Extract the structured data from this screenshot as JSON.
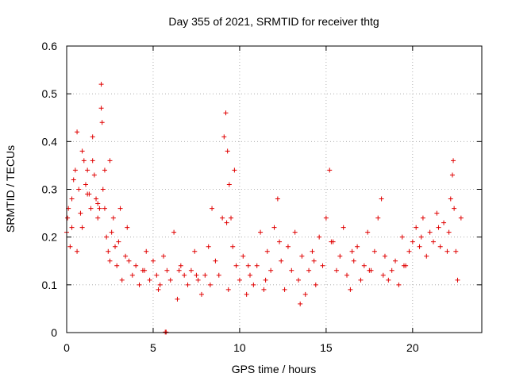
{
  "chart_data": {
    "type": "scatter",
    "title": "Day 355 of 2021, SRMTID for receiver thtg",
    "xlabel": "GPS time / hours",
    "ylabel": "SRMTID / TECUs",
    "xlim": [
      0,
      24
    ],
    "ylim": [
      0,
      0.6
    ],
    "xticks": [
      0,
      5,
      10,
      15,
      20
    ],
    "xtick_labels": [
      "0",
      "5",
      "10",
      "15",
      "20"
    ],
    "yticks": [
      0,
      0.1,
      0.2,
      0.3,
      0.4,
      0.5,
      0.6
    ],
    "ytick_labels": [
      "0",
      "0.1",
      "0.2",
      "0.3",
      "0.4",
      "0.5",
      "0.6"
    ],
    "grid": true,
    "marker": "plus",
    "color": "#e00000",
    "series": [
      {
        "name": "SRMTID",
        "x": [
          0.0,
          0.1,
          0.2,
          0.3,
          0.4,
          0.5,
          0.6,
          0.7,
          0.8,
          0.9,
          1.0,
          1.1,
          1.2,
          1.3,
          1.4,
          1.5,
          1.6,
          1.7,
          1.8,
          1.9,
          2.0,
          2.0,
          2.05,
          2.1,
          2.2,
          2.3,
          2.4,
          2.5,
          2.6,
          2.7,
          2.8,
          2.9,
          3.0,
          3.2,
          3.4,
          3.6,
          3.8,
          4.0,
          4.2,
          4.4,
          4.6,
          4.8,
          5.0,
          5.2,
          5.4,
          5.6,
          5.8,
          6.0,
          6.2,
          6.4,
          6.6,
          6.8,
          7.0,
          7.2,
          7.4,
          7.6,
          7.8,
          8.0,
          8.2,
          8.4,
          8.6,
          8.8,
          9.0,
          9.1,
          9.2,
          9.3,
          9.4,
          9.5,
          9.6,
          9.8,
          10.0,
          10.2,
          10.4,
          10.6,
          10.8,
          11.0,
          11.2,
          11.4,
          11.6,
          11.8,
          12.0,
          12.2,
          12.4,
          12.6,
          12.8,
          13.0,
          13.2,
          13.4,
          13.6,
          13.8,
          14.0,
          14.2,
          14.4,
          14.6,
          14.8,
          15.0,
          15.2,
          15.4,
          15.6,
          15.8,
          16.0,
          16.2,
          16.4,
          16.6,
          16.8,
          17.0,
          17.2,
          17.4,
          17.6,
          17.8,
          18.0,
          18.2,
          18.4,
          18.6,
          18.8,
          19.0,
          19.2,
          19.4,
          19.6,
          19.8,
          20.0,
          20.2,
          20.4,
          20.6,
          20.8,
          21.0,
          21.2,
          21.4,
          21.6,
          21.8,
          22.0,
          22.1,
          22.2,
          22.3,
          22.4,
          22.6,
          22.8,
          0.05,
          0.3,
          0.6,
          0.9,
          1.2,
          1.5,
          1.8,
          2.2,
          2.5,
          3.1,
          3.5,
          4.5,
          5.3,
          6.5,
          7.5,
          8.3,
          9.25,
          9.35,
          9.7,
          10.5,
          11.5,
          12.3,
          13.5,
          14.3,
          15.3,
          16.5,
          17.5,
          18.3,
          19.5,
          20.5,
          21.5,
          22.35,
          22.5,
          5.7,
          5.75
        ],
        "y": [
          0.21,
          0.26,
          0.18,
          0.28,
          0.32,
          0.34,
          0.42,
          0.3,
          0.25,
          0.38,
          0.36,
          0.31,
          0.34,
          0.29,
          0.26,
          0.36,
          0.33,
          0.28,
          0.24,
          0.26,
          0.47,
          0.52,
          0.44,
          0.3,
          0.34,
          0.2,
          0.17,
          0.15,
          0.21,
          0.24,
          0.18,
          0.14,
          0.19,
          0.11,
          0.16,
          0.15,
          0.12,
          0.14,
          0.1,
          0.13,
          0.17,
          0.11,
          0.15,
          0.12,
          0.1,
          0.16,
          0.13,
          0.11,
          0.21,
          0.07,
          0.14,
          0.12,
          0.1,
          0.13,
          0.17,
          0.11,
          0.08,
          0.12,
          0.18,
          0.26,
          0.15,
          0.12,
          0.24,
          0.41,
          0.46,
          0.38,
          0.31,
          0.24,
          0.18,
          0.14,
          0.11,
          0.16,
          0.08,
          0.12,
          0.1,
          0.14,
          0.21,
          0.09,
          0.17,
          0.13,
          0.22,
          0.28,
          0.15,
          0.09,
          0.18,
          0.13,
          0.21,
          0.11,
          0.16,
          0.08,
          0.13,
          0.17,
          0.1,
          0.2,
          0.14,
          0.24,
          0.34,
          0.19,
          0.13,
          0.16,
          0.22,
          0.12,
          0.09,
          0.15,
          0.18,
          0.11,
          0.14,
          0.21,
          0.13,
          0.17,
          0.24,
          0.28,
          0.16,
          0.11,
          0.13,
          0.15,
          0.1,
          0.2,
          0.14,
          0.17,
          0.19,
          0.22,
          0.18,
          0.24,
          0.16,
          0.21,
          0.19,
          0.25,
          0.18,
          0.23,
          0.17,
          0.21,
          0.28,
          0.33,
          0.26,
          0.11,
          0.24,
          0.24,
          0.22,
          0.17,
          0.22,
          0.29,
          0.41,
          0.27,
          0.26,
          0.36,
          0.26,
          0.22,
          0.13,
          0.09,
          0.13,
          0.12,
          0.1,
          0.23,
          0.09,
          0.34,
          0.14,
          0.11,
          0.19,
          0.06,
          0.15,
          0.19,
          0.17,
          0.13,
          0.12,
          0.14,
          0.2,
          0.22,
          0.36,
          0.17,
          0.001,
          0.001
        ]
      }
    ]
  }
}
